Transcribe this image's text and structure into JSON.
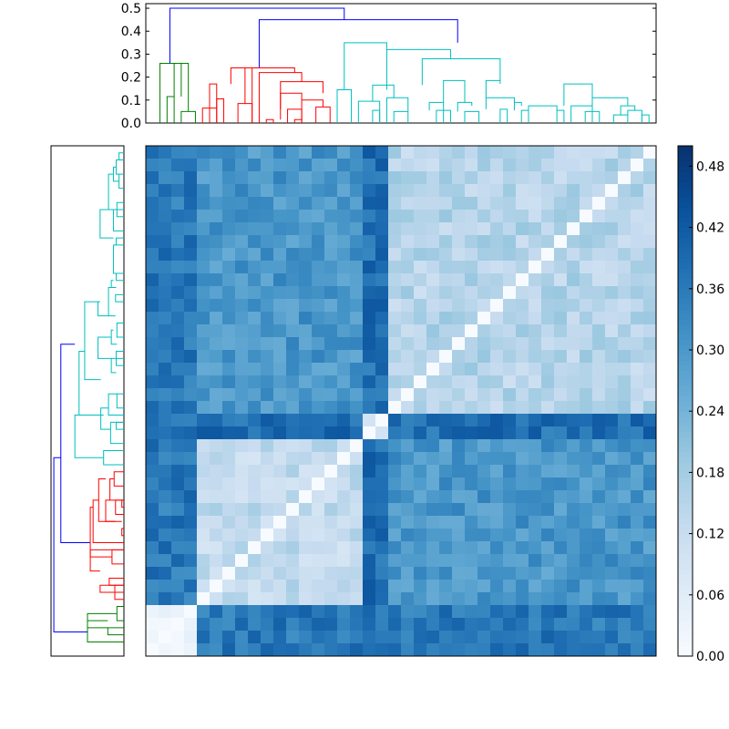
{
  "chart_data": [
    {
      "type": "dendrogram",
      "orientation": "top",
      "ylim": [
        0,
        0.52
      ],
      "yticks": [
        0.0,
        0.1,
        0.2,
        0.3,
        0.4,
        0.5
      ],
      "ytick_labels": [
        "0.0",
        "0.1",
        "0.2",
        "0.3",
        "0.4",
        "0.5"
      ],
      "cluster_colors": {
        "green": "#008000",
        "red": "#ff0000",
        "cyan": "#00bfbf",
        "link": "#0000ff"
      },
      "links": [
        {
          "a": [
            1.5,
            0.115
          ],
          "b": [
            2.5,
            0.05
          ],
          "h": 0.26,
          "ha": 0.115,
          "hb": 0.05,
          "color": "#008000"
        },
        {
          "a": [
            1.5,
            0.115
          ],
          "b": [
            1.0,
            0.0
          ],
          "h": 0.115,
          "ha": 0.0,
          "hb": 0.0,
          "color": "#008000"
        },
        {
          "a": [
            2.0,
            0.0
          ],
          "b": [
            3.0,
            0.0
          ],
          "h": 0.05,
          "ha": 0.0,
          "hb": 0.0,
          "color": "#008000"
        },
        {
          "a": [
            0.5,
            0.0
          ],
          "b": [
            2.0,
            0.0
          ],
          "h": 0.26,
          "ha": 0.0,
          "hb": 0.115,
          "color": "#008000"
        },
        {
          "a": [
            1.2,
            0.26
          ],
          "b": [
            13.5,
            0.45
          ],
          "h": 0.5,
          "ha": 0.26,
          "hb": 0.45,
          "color": "#0000ff"
        },
        {
          "a": [
            7.5,
            0.24
          ],
          "b": [
            21.5,
            0.35
          ],
          "h": 0.45,
          "ha": 0.24,
          "hb": 0.35,
          "color": "#0000ff"
        }
      ],
      "red_links": [
        [
          4.0,
          4.5,
          0.17,
          0.0,
          0.065
        ],
        [
          3.5,
          4.5,
          0.065,
          0,
          0
        ],
        [
          4.5,
          5.0,
          0.105,
          0,
          0
        ],
        [
          6.0,
          7.0,
          0.085,
          0,
          0
        ],
        [
          5.5,
          7.0,
          0.24,
          0.17,
          0.0
        ],
        [
          6.5,
          10.0,
          0.24,
          0.085,
          0.22
        ],
        [
          7.5,
          10.5,
          0.22,
          0.0,
          0.18
        ],
        [
          9.0,
          12.0,
          0.18,
          0.015,
          0.13
        ],
        [
          8.0,
          8.5,
          0.015,
          0,
          0
        ],
        [
          9.0,
          10.5,
          0.13,
          0.06,
          0.1
        ],
        [
          9.5,
          10.5,
          0.06,
          0,
          0
        ],
        [
          10.0,
          10.5,
          0.015,
          0,
          0
        ],
        [
          10.5,
          12.0,
          0.1,
          0.015,
          0.07
        ],
        [
          11.5,
          12.5,
          0.07,
          0,
          0
        ]
      ],
      "cyan_links": [
        [
          13.0,
          14.0,
          0.145,
          0,
          0
        ],
        [
          13.5,
          16.5,
          0.35,
          0.145,
          0.32
        ],
        [
          16.5,
          21.0,
          0.32,
          0.145,
          0.28
        ],
        [
          15.5,
          17.0,
          0.165,
          0.095,
          0.11
        ],
        [
          14.5,
          16.0,
          0.095,
          0,
          0
        ],
        [
          15.5,
          16.0,
          0.055,
          0,
          0
        ],
        [
          16.5,
          18.0,
          0.11,
          0,
          0.05
        ],
        [
          17.0,
          18.0,
          0.05,
          0,
          0
        ],
        [
          19.0,
          24.5,
          0.28,
          0.165,
          0.185
        ],
        [
          20.5,
          22.0,
          0.185,
          0.09,
          0.09
        ],
        [
          19.5,
          20.5,
          0.09,
          0.055,
          0
        ],
        [
          20.0,
          21.0,
          0.055,
          0,
          0
        ],
        [
          21.5,
          22.5,
          0.09,
          0.05,
          0.075
        ],
        [
          22.0,
          23.0,
          0.05,
          0,
          0
        ],
        [
          23.5,
          24.5,
          0.185,
          0.11,
          0.17
        ],
        [
          23.5,
          25.5,
          0.11,
          0.06,
          0.09
        ],
        [
          24.5,
          25.0,
          0.06,
          0,
          0
        ],
        [
          25.5,
          26.0,
          0.09,
          0.055,
          0.075
        ],
        [
          26.0,
          26.5,
          0.055,
          0,
          0
        ],
        [
          26.5,
          28.5,
          0.075,
          0.055,
          0.055
        ],
        [
          28.5,
          29.0,
          0.055,
          0,
          0
        ],
        [
          29.0,
          31.0,
          0.17,
          0.075,
          0.11
        ],
        [
          29.5,
          31.0,
          0.075,
          0,
          0.05
        ],
        [
          30.5,
          31.5,
          0.05,
          0,
          0
        ],
        [
          31.0,
          33.5,
          0.11,
          0,
          0.075
        ],
        [
          33.0,
          34.0,
          0.075,
          0.035,
          0.055
        ],
        [
          32.5,
          33.5,
          0.035,
          0,
          0
        ],
        [
          33.5,
          34.5,
          0.055,
          0.035,
          0
        ],
        [
          34.5,
          35.0,
          0.035,
          0,
          0
        ]
      ]
    },
    {
      "type": "heatmap",
      "n": 40,
      "colormap": "Blues",
      "vmin": 0.0,
      "vmax": 0.5,
      "note": "symmetric distance matrix, zero diagonal, rendered from row/column cluster structure"
    },
    {
      "type": "colorbar",
      "ticks": [
        0.0,
        0.06,
        0.12,
        0.18,
        0.24,
        0.3,
        0.36,
        0.42,
        0.48
      ],
      "tick_labels": [
        "0.00",
        "0.06",
        "0.12",
        "0.18",
        "0.24",
        "0.30",
        "0.36",
        "0.42",
        "0.48"
      ],
      "vmin": 0.0,
      "vmax": 0.5
    }
  ]
}
